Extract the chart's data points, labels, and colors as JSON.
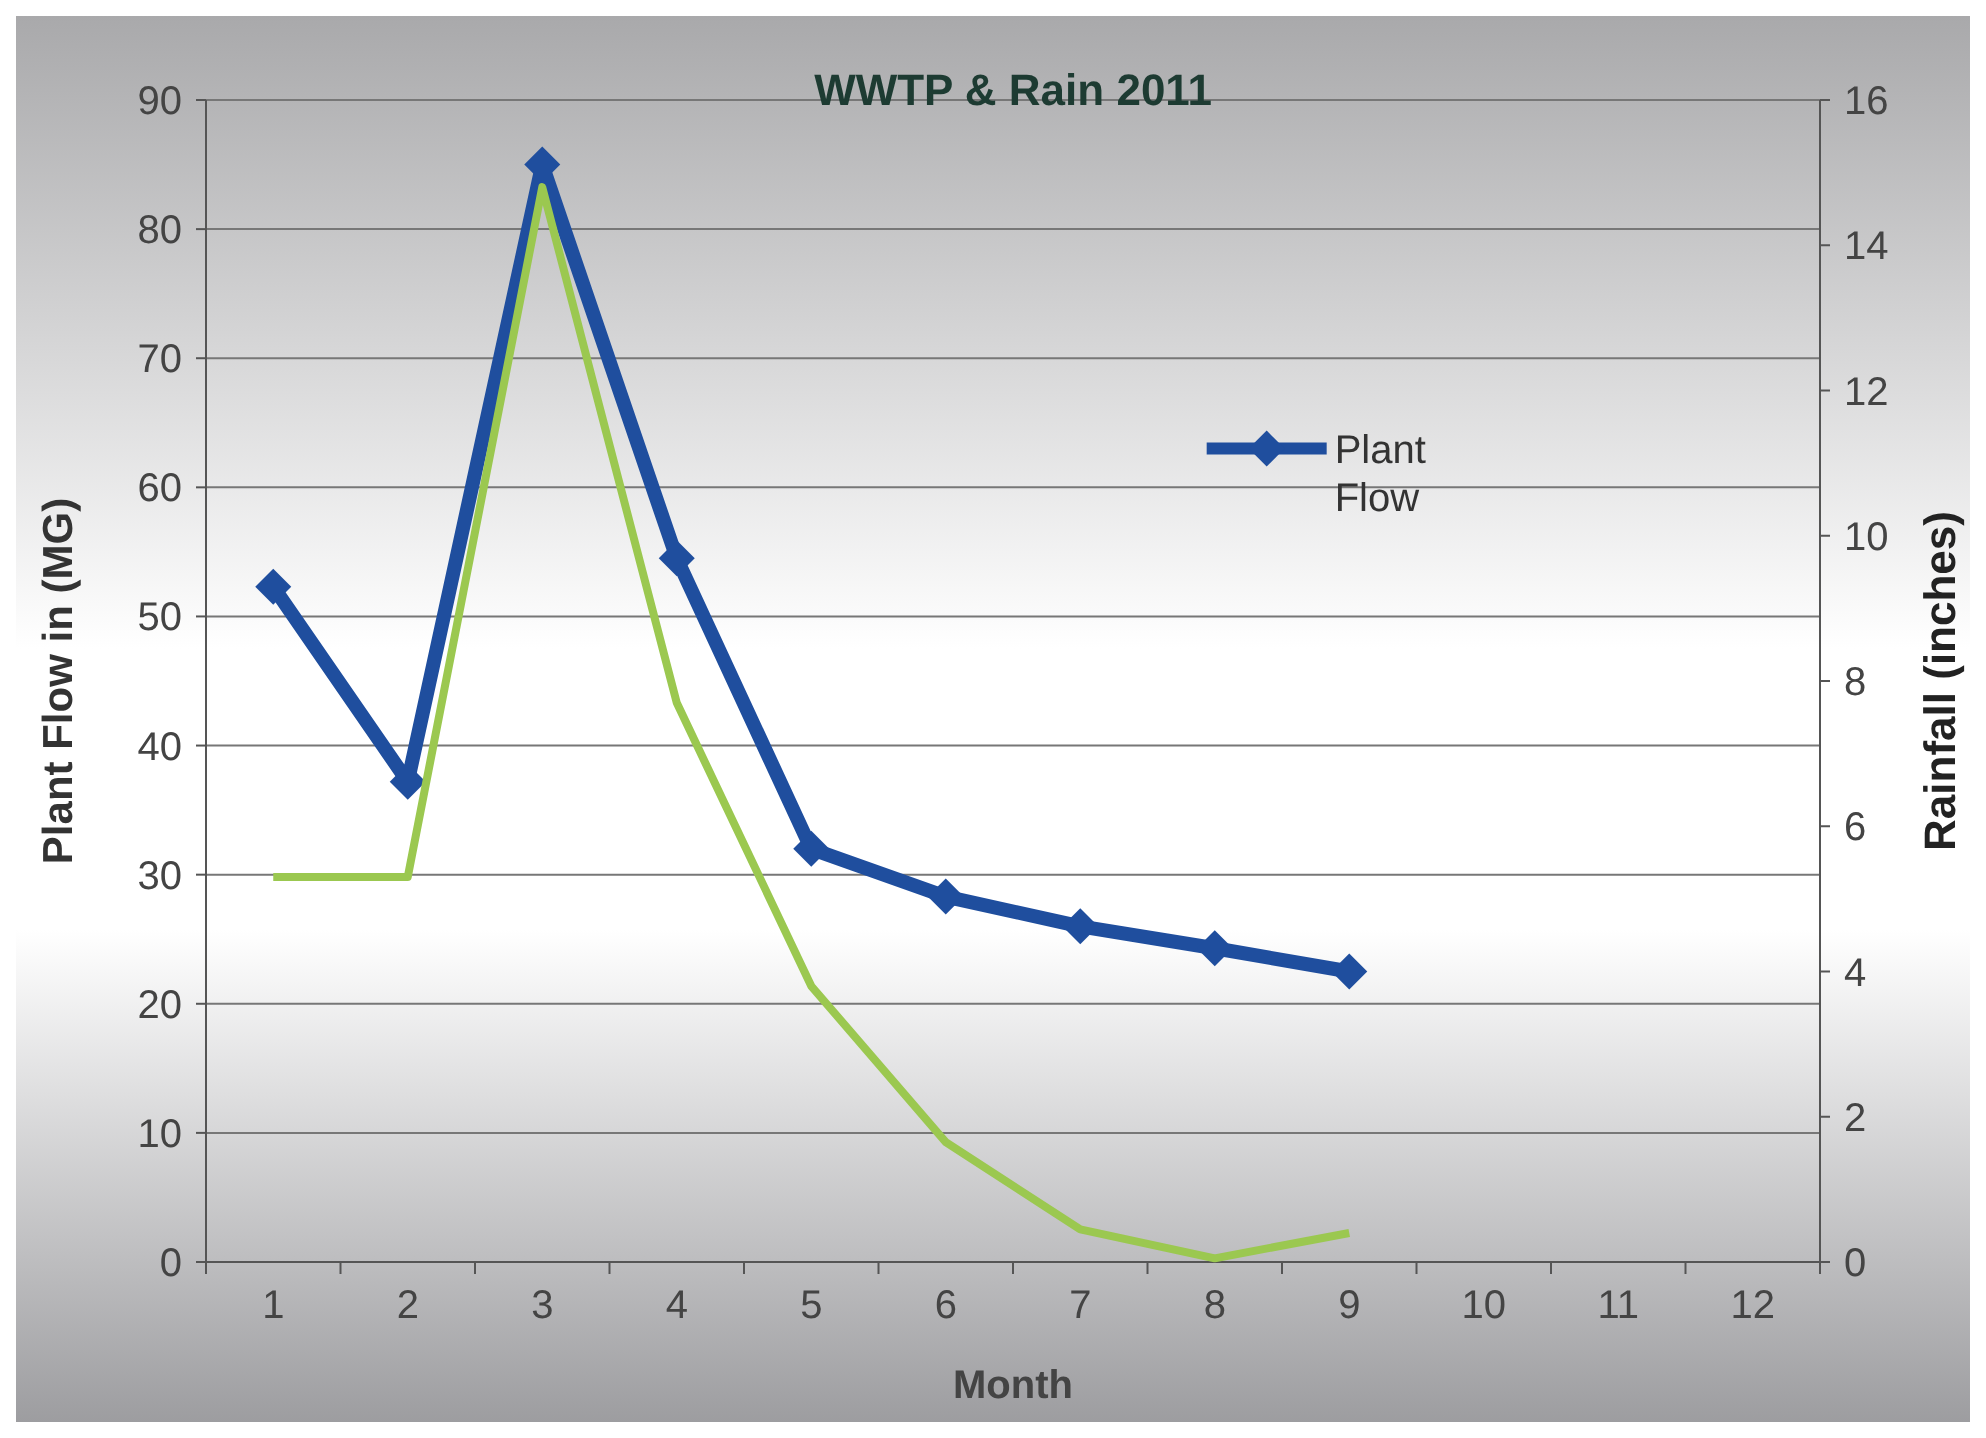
{
  "chart_data": {
    "type": "line",
    "title": "WWTP  & Rain 2011",
    "xlabel": "Month",
    "ylabel": "Plant Flow in (MG)",
    "y2label": "Rainfall (inches)",
    "categories": [
      "1",
      "2",
      "3",
      "4",
      "5",
      "6",
      "7",
      "8",
      "9",
      "10",
      "11",
      "12"
    ],
    "series": [
      {
        "name": "Plant Flow",
        "color": "#1f4e9e",
        "marker": "diamond",
        "values": [
          52.3,
          37.2,
          85,
          54.5,
          32,
          28.3,
          26,
          24.3,
          22.5,
          null,
          null,
          null
        ]
      },
      {
        "color": "#9bc850",
        "axis": "y2",
        "marker": "none",
        "values": [
          5.3,
          5.3,
          14.8,
          7.7,
          3.8,
          1.65,
          0.45,
          0.05,
          0.4,
          null,
          null,
          null
        ]
      }
    ],
    "ylim": [
      0,
      90
    ],
    "yticks": [
      0,
      10,
      20,
      30,
      40,
      50,
      60,
      70,
      80,
      90
    ],
    "y2lim": [
      0,
      16
    ],
    "y2ticks": [
      0,
      2,
      4,
      6,
      8,
      10,
      12,
      14,
      16
    ],
    "grid": "y",
    "legend": "right"
  }
}
